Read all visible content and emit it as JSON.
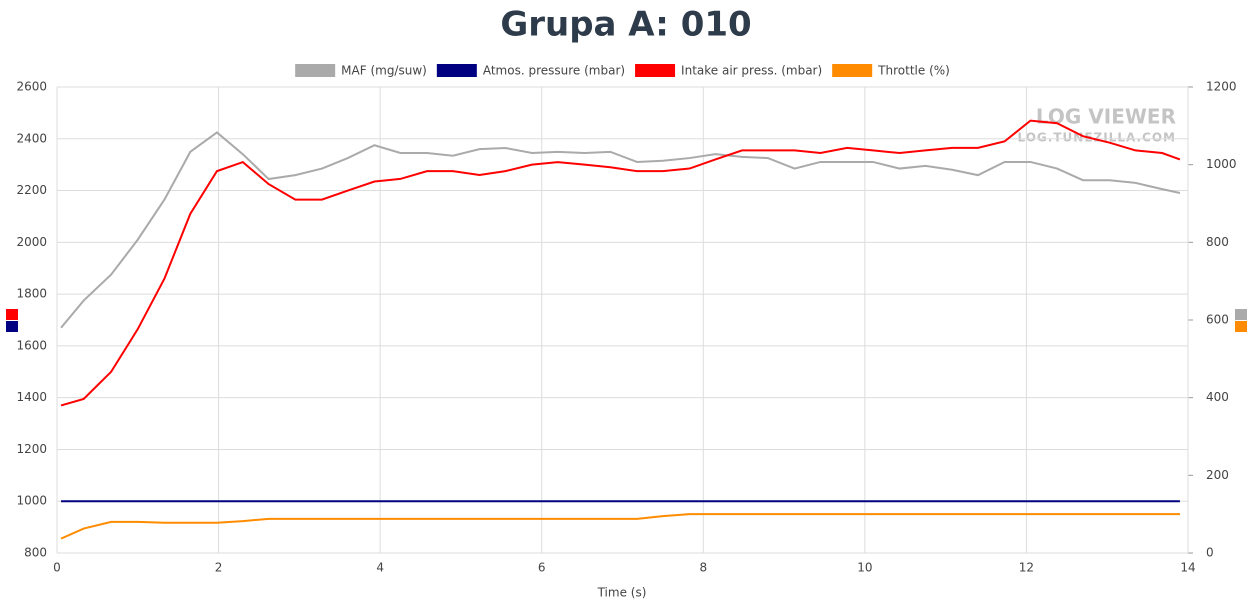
{
  "chart_data": {
    "type": "line",
    "title": "Grupa A: 010",
    "xlabel": "Time (s)",
    "watermark": [
      "LOG VIEWER",
      "LOG.TUNEZILLA.COM"
    ],
    "legend": "top",
    "grid": true,
    "x": [
      0.05,
      0.33,
      0.67,
      1.0,
      1.33,
      1.65,
      1.98,
      2.3,
      2.62,
      2.95,
      3.28,
      3.6,
      3.93,
      4.25,
      4.58,
      4.9,
      5.23,
      5.55,
      5.88,
      6.2,
      6.53,
      6.85,
      7.18,
      7.5,
      7.83,
      8.15,
      8.48,
      8.8,
      9.13,
      9.45,
      9.78,
      10.1,
      10.43,
      10.75,
      11.08,
      11.4,
      11.73,
      12.05,
      12.38,
      12.7,
      13.03,
      13.35,
      13.68,
      13.9
    ],
    "xlim": [
      0,
      14
    ],
    "xticks": [
      0,
      2,
      4,
      6,
      8,
      10,
      12,
      14
    ],
    "ylim": [
      800,
      2600
    ],
    "yticks": [
      800,
      1000,
      1200,
      1400,
      1600,
      1800,
      2000,
      2200,
      2400,
      2600
    ],
    "y2lim": [
      0,
      1200
    ],
    "y2ticks": [
      0,
      200,
      400,
      600,
      800,
      1000,
      1200
    ],
    "series": [
      {
        "name": "MAF (mg/suw)",
        "color": "#aaaaaa",
        "axis": "y2",
        "values": [
          580,
          650,
          717,
          807,
          910,
          1033,
          1083,
          1027,
          963,
          973,
          990,
          1017,
          1050,
          1030,
          1030,
          1023,
          1040,
          1043,
          1030,
          1033,
          1030,
          1033,
          1007,
          1010,
          1017,
          1027,
          1020,
          1017,
          990,
          1007,
          1007,
          1007,
          990,
          997,
          987,
          973,
          1007,
          1007,
          990,
          960,
          960,
          953,
          937,
          927
        ]
      },
      {
        "name": "Atmos. pressure (mbar)",
        "color": "#000080",
        "axis": "y",
        "values": [
          1000,
          1000,
          1000,
          1000,
          1000,
          1000,
          1000,
          1000,
          1000,
          1000,
          1000,
          1000,
          1000,
          1000,
          1000,
          1000,
          1000,
          1000,
          1000,
          1000,
          1000,
          1000,
          1000,
          1000,
          1000,
          1000,
          1000,
          1000,
          1000,
          1000,
          1000,
          1000,
          1000,
          1000,
          1000,
          1000,
          1000,
          1000,
          1000,
          1000,
          1000,
          1000,
          1000,
          1000
        ]
      },
      {
        "name": "Intake air press. (mbar)",
        "color": "#ff0000",
        "axis": "y",
        "values": [
          1370,
          1395,
          1500,
          1665,
          1860,
          2110,
          2275,
          2310,
          2225,
          2165,
          2165,
          2200,
          2235,
          2245,
          2275,
          2275,
          2260,
          2275,
          2300,
          2310,
          2300,
          2290,
          2275,
          2275,
          2285,
          2320,
          2355,
          2355,
          2355,
          2345,
          2365,
          2355,
          2345,
          2355,
          2365,
          2365,
          2390,
          2470,
          2460,
          2410,
          2385,
          2355,
          2345,
          2320
        ]
      },
      {
        "name": "Throttle (%)",
        "color": "#ff8c00",
        "axis": "y2",
        "values": [
          37,
          63,
          80,
          80,
          78,
          78,
          78,
          82,
          88,
          88,
          88,
          88,
          88,
          88,
          88,
          88,
          88,
          88,
          88,
          88,
          88,
          88,
          88,
          95,
          100,
          100,
          100,
          100,
          100,
          100,
          100,
          100,
          100,
          100,
          100,
          100,
          100,
          100,
          100,
          100,
          100,
          100,
          100,
          100
        ]
      }
    ]
  }
}
